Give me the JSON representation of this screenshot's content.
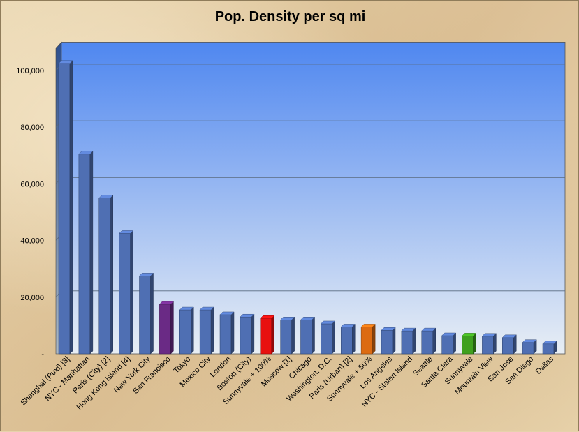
{
  "chart_data": {
    "type": "bar",
    "title": "Pop. Density per sq mi",
    "xlabel": "",
    "ylabel": "",
    "ylim": [
      0,
      110000
    ],
    "y_ticks": [
      0,
      20000,
      40000,
      60000,
      80000,
      100000
    ],
    "y_tick_labels": [
      "-",
      "20,000",
      "40,000",
      "60,000",
      "80,000",
      "100,000"
    ],
    "grid": true,
    "categories": [
      "Shanghai (Puxi) [3]",
      "NYC - Manhattan",
      "Paris (City) [2]",
      "Hong Kong Island [4]",
      "New York City",
      "San Francisco",
      "Tokyo",
      "Mexico City",
      "London",
      "Boston (City)",
      "Sunnyvale + 100%",
      "Moscow [1]",
      "Chicago",
      "Washington, D.C.",
      "Paris (Urban) [2]",
      "Sunnyvale + 50%",
      "Los Angeles",
      "NYC - Staten Island",
      "Seattle",
      "Santa Clara",
      "Sunnyvale",
      "Mountain View",
      "San Jose",
      "San Diego",
      "Dallas"
    ],
    "values": [
      102500,
      70500,
      55000,
      42500,
      27500,
      17500,
      15500,
      15500,
      13800,
      13000,
      12500,
      12000,
      12000,
      10600,
      9500,
      9500,
      8300,
      8100,
      8100,
      6400,
      6300,
      6200,
      5700,
      4000,
      3500
    ],
    "bar_colors": [
      "#4f6fb3",
      "#4f6fb3",
      "#4f6fb3",
      "#4f6fb3",
      "#4f6fb3",
      "#6a2a85",
      "#4f6fb3",
      "#4f6fb3",
      "#4f6fb3",
      "#4f6fb3",
      "#e81010",
      "#4f6fb3",
      "#4f6fb3",
      "#4f6fb3",
      "#4f6fb3",
      "#dc6b12",
      "#4f6fb3",
      "#4f6fb3",
      "#4f6fb3",
      "#4f6fb3",
      "#3ea01e",
      "#4f6fb3",
      "#4f6fb3",
      "#4f6fb3",
      "#4f6fb3"
    ],
    "plot_background": [
      "#4f87f0",
      "#e8eef4"
    ]
  }
}
